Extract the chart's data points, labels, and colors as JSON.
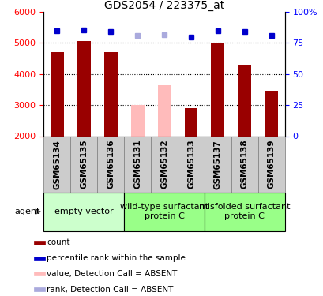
{
  "title": "GDS2054 / 223375_at",
  "samples": [
    "GSM65134",
    "GSM65135",
    "GSM65136",
    "GSM65131",
    "GSM65132",
    "GSM65133",
    "GSM65137",
    "GSM65138",
    "GSM65139"
  ],
  "counts": [
    4700,
    5050,
    4700,
    3000,
    3650,
    2900,
    5000,
    4300,
    3450
  ],
  "absent": [
    false,
    false,
    false,
    true,
    true,
    false,
    false,
    false,
    false
  ],
  "percentile_ranks": [
    84.6,
    85.5,
    84.4,
    81.0,
    81.9,
    79.7,
    84.6,
    84.0,
    81.1
  ],
  "absent_rank": [
    false,
    false,
    false,
    true,
    true,
    false,
    false,
    false,
    false
  ],
  "ylim_left": [
    2000,
    6000
  ],
  "ylim_right": [
    0,
    100
  ],
  "yticks_left": [
    2000,
    3000,
    4000,
    5000,
    6000
  ],
  "yticks_right": [
    0,
    25,
    50,
    75,
    100
  ],
  "groups": [
    {
      "label": "empty vector",
      "start": 0,
      "end": 3,
      "color": "#ccffcc"
    },
    {
      "label": "wild-type surfactant\nprotein C",
      "start": 3,
      "end": 6,
      "color": "#99ff88"
    },
    {
      "label": "misfolded surfactant\nprotein C",
      "start": 6,
      "end": 9,
      "color": "#99ff88"
    }
  ],
  "bar_color_present": "#990000",
  "bar_color_absent": "#ffbbbb",
  "rank_color_present": "#0000cc",
  "rank_color_absent": "#aaaadd",
  "bar_width": 0.5,
  "sample_cell_color": "#cccccc",
  "legend_items": [
    {
      "label": "count",
      "color": "#990000",
      "marker": "square"
    },
    {
      "label": "percentile rank within the sample",
      "color": "#0000cc",
      "marker": "square"
    },
    {
      "label": "value, Detection Call = ABSENT",
      "color": "#ffbbbb",
      "marker": "square"
    },
    {
      "label": "rank, Detection Call = ABSENT",
      "color": "#aaaadd",
      "marker": "square"
    }
  ],
  "agent_label": "agent",
  "group_label_fontsize": 8,
  "tick_label_fontsize": 7.5
}
